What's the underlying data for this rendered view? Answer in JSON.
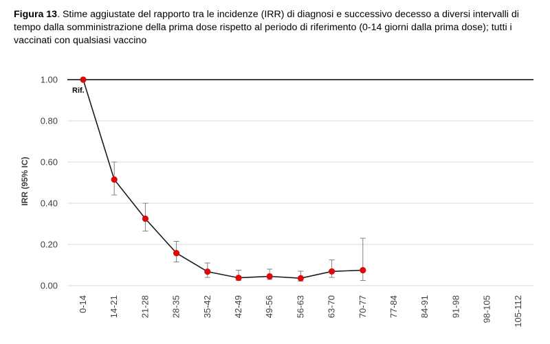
{
  "caption": {
    "label": "Figura 13",
    "text": ". Stime aggiustate del rapporto tra le incidenze (IRR) di diagnosi e successivo decesso a diversi intervalli di tempo dalla somministrazione della prima dose rispetto al periodo di riferimento (0-14 giorni dalla prima dose); tutti i vaccinati con qualsiasi vaccino"
  },
  "chart_data": {
    "type": "line",
    "title": "",
    "xlabel": "",
    "ylabel": "IRR (95% IC)",
    "categories": [
      "0-14",
      "14-21",
      "21-28",
      "28-35",
      "35-42",
      "42-49",
      "49-56",
      "56-63",
      "63-70",
      "70-77",
      "77-84",
      "84-91",
      "91-98",
      "98-105",
      "105-112"
    ],
    "series": [
      {
        "values": [
          1.0,
          0.515,
          0.325,
          0.158,
          0.068,
          0.038,
          0.045,
          0.036,
          0.069,
          0.075,
          null,
          null,
          null,
          null,
          null
        ],
        "ci_low": [
          null,
          0.44,
          0.265,
          0.115,
          0.04,
          0.025,
          0.03,
          0.022,
          0.04,
          0.025,
          null,
          null,
          null,
          null,
          null
        ],
        "ci_high": [
          null,
          0.6,
          0.4,
          0.215,
          0.11,
          0.075,
          0.08,
          0.07,
          0.125,
          0.23,
          null,
          null,
          null,
          null,
          null
        ],
        "color": "#d90b0b"
      }
    ],
    "reference": {
      "value": 1.0,
      "label": "Rif."
    },
    "yticks": [
      "0.00",
      "0.20",
      "0.40",
      "0.60",
      "0.80",
      "1.00"
    ],
    "ylim": [
      0,
      1
    ],
    "grid": true,
    "legend": "none"
  }
}
